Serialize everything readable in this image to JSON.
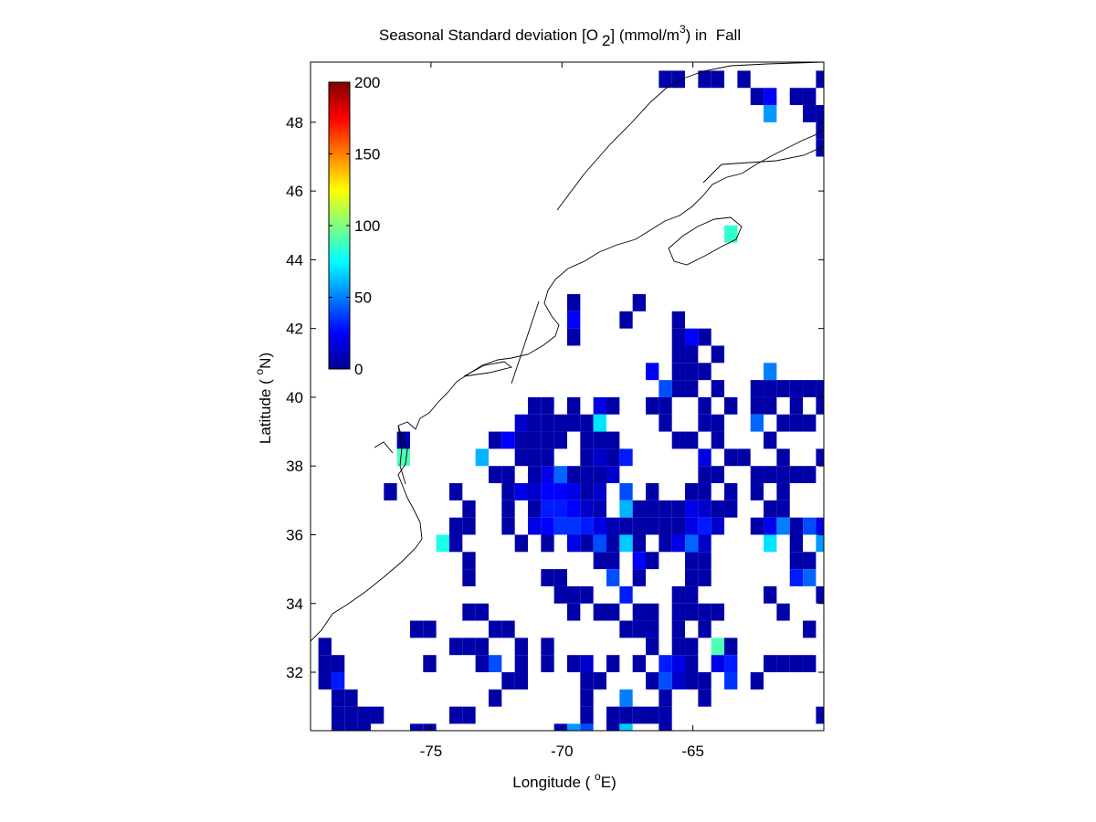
{
  "chart_data": {
    "type": "heatmap",
    "title_parts": [
      "Seasonal Standard deviation [O",
      "2",
      "] (mmol/m",
      "3",
      ") in  Fall"
    ],
    "xlabel_parts": [
      "Longitude ( ",
      "o",
      "E)"
    ],
    "ylabel_parts": [
      "Latitude ( ",
      "o",
      "N)"
    ],
    "xlim": [
      -79.6,
      -60
    ],
    "ylim": [
      30.3,
      49.75
    ],
    "xticks": [
      -75,
      -70,
      -65
    ],
    "yticks": [
      32,
      34,
      36,
      38,
      40,
      42,
      44,
      46,
      48
    ],
    "colormap": "jet",
    "clim": [
      0,
      200
    ],
    "cticks": [
      0,
      50,
      100,
      150,
      200
    ],
    "x": [
      -66.05,
      -65.55,
      -64.55,
      -64.05,
      -63.05,
      -60.05,
      -62.55,
      -62.05,
      -61.05,
      -60.55,
      -62.05,
      -60.55,
      -60.05,
      -60.05,
      -60.05,
      -63.55,
      -69.55,
      -67.05,
      -69.55,
      -67.55,
      -65.55,
      -69.55,
      -65.55,
      -65.05,
      -64.55,
      -65.55,
      -65.05,
      -64.05,
      -66.55,
      -65.55,
      -65.05,
      -64.55,
      -62.05,
      -66.05,
      -65.55,
      -65.05,
      -64.05,
      -62.55,
      -62.05,
      -61.55,
      -61.05,
      -60.55,
      -60.05,
      -71.05,
      -70.55,
      -69.55,
      -68.55,
      -68.05,
      -66.55,
      -66.05,
      -64.55,
      -63.55,
      -62.55,
      -62.05,
      -61.05,
      -60.05,
      -71.55,
      -71.05,
      -70.55,
      -70.05,
      -69.55,
      -69.05,
      -68.55,
      -66.05,
      -64.55,
      -64.05,
      -62.55,
      -61.55,
      -61.05,
      -60.55,
      -76.05,
      -72.55,
      -72.05,
      -71.55,
      -71.05,
      -70.55,
      -70.05,
      -69.05,
      -68.55,
      -68.05,
      -65.55,
      -65.05,
      -64.05,
      -62.05,
      -76.05,
      -73.05,
      -71.55,
      -71.05,
      -70.55,
      -69.05,
      -68.55,
      -68.05,
      -67.55,
      -64.55,
      -63.55,
      -63.05,
      -61.55,
      -60.05,
      -72.55,
      -72.05,
      -71.05,
      -70.55,
      -70.05,
      -69.55,
      -69.05,
      -68.55,
      -68.05,
      -64.55,
      -64.05,
      -62.55,
      -62.05,
      -61.55,
      -61.05,
      -60.55,
      -76.55,
      -74.05,
      -72.05,
      -71.55,
      -71.05,
      -70.55,
      -70.05,
      -69.55,
      -69.05,
      -68.55,
      -67.55,
      -66.55,
      -65.05,
      -64.55,
      -63.55,
      -62.55,
      -61.55,
      -73.55,
      -72.05,
      -71.05,
      -70.55,
      -70.05,
      -69.55,
      -69.05,
      -68.55,
      -67.55,
      -67.05,
      -66.55,
      -66.05,
      -65.55,
      -65.05,
      -64.55,
      -64.05,
      -63.55,
      -62.05,
      -61.55,
      -74.05,
      -73.55,
      -72.05,
      -71.05,
      -70.55,
      -70.05,
      -69.55,
      -69.05,
      -68.55,
      -68.05,
      -67.55,
      -67.05,
      -66.55,
      -66.05,
      -65.55,
      -65.05,
      -64.55,
      -64.05,
      -62.55,
      -62.05,
      -61.55,
      -61.05,
      -60.55,
      -60.05,
      -74.55,
      -74.05,
      -71.55,
      -70.55,
      -69.55,
      -69.05,
      -68.55,
      -68.05,
      -67.55,
      -67.05,
      -66.05,
      -65.55,
      -65.05,
      -64.55,
      -62.05,
      -61.05,
      -60.05,
      -73.55,
      -68.55,
      -68.05,
      -67.05,
      -66.55,
      -65.05,
      -64.55,
      -61.05,
      -60.55,
      -73.55,
      -70.55,
      -70.05,
      -68.05,
      -67.05,
      -65.05,
      -64.55,
      -61.05,
      -60.55,
      -70.05,
      -69.55,
      -69.05,
      -67.55,
      -65.55,
      -65.05,
      -62.05,
      -60.05,
      -73.55,
      -73.05,
      -69.55,
      -68.55,
      -68.05,
      -67.05,
      -66.55,
      -65.55,
      -65.05,
      -64.55,
      -64.05,
      -61.55,
      -75.55,
      -75.05,
      -72.55,
      -72.05,
      -67.55,
      -67.05,
      -66.55,
      -65.55,
      -64.55,
      -60.55,
      -79.05,
      -74.05,
      -73.55,
      -73.05,
      -71.55,
      -70.55,
      -66.55,
      -65.55,
      -65.05,
      -64.05,
      -63.55,
      -79.05,
      -78.55,
      -75.05,
      -73.05,
      -72.55,
      -71.55,
      -70.55,
      -69.55,
      -69.05,
      -68.05,
      -67.05,
      -66.05,
      -65.55,
      -65.05,
      -64.05,
      -63.55,
      -62.05,
      -61.55,
      -61.05,
      -60.55,
      -79.05,
      -78.55,
      -72.05,
      -71.55,
      -69.05,
      -68.55,
      -66.55,
      -66.05,
      -65.55,
      -65.05,
      -64.55,
      -63.55,
      -62.55,
      -78.55,
      -78.05,
      -72.55,
      -69.05,
      -67.55,
      -66.05,
      -64.55,
      -78.55,
      -78.05,
      -77.55,
      -77.05,
      -74.05,
      -73.55,
      -69.05,
      -68.05,
      -67.55,
      -67.05,
      -66.55,
      -66.05,
      -60.05,
      -78.55,
      -78.05,
      -77.55,
      -75.55,
      -75.05,
      -70.05,
      -69.55,
      -69.05,
      -68.05,
      -67.55,
      -66.05
    ],
    "y": [
      49.25,
      49.25,
      49.25,
      49.25,
      49.25,
      49.25,
      48.75,
      48.75,
      48.75,
      48.75,
      48.25,
      48.25,
      48.25,
      47.75,
      47.25,
      44.75,
      42.75,
      42.75,
      42.25,
      42.25,
      42.25,
      41.75,
      41.75,
      41.75,
      41.75,
      41.25,
      41.25,
      41.25,
      40.75,
      40.75,
      40.75,
      40.75,
      40.75,
      40.25,
      40.25,
      40.25,
      40.25,
      40.25,
      40.25,
      40.25,
      40.25,
      40.25,
      40.25,
      39.75,
      39.75,
      39.75,
      39.75,
      39.75,
      39.75,
      39.75,
      39.75,
      39.75,
      39.75,
      39.75,
      39.75,
      39.75,
      39.25,
      39.25,
      39.25,
      39.25,
      39.25,
      39.25,
      39.25,
      39.25,
      39.25,
      39.25,
      39.25,
      39.25,
      39.25,
      39.25,
      38.75,
      38.75,
      38.75,
      38.75,
      38.75,
      38.75,
      38.75,
      38.75,
      38.75,
      38.75,
      38.75,
      38.75,
      38.75,
      38.75,
      38.25,
      38.25,
      38.25,
      38.25,
      38.25,
      38.25,
      38.25,
      38.25,
      38.25,
      38.25,
      38.25,
      38.25,
      38.25,
      38.25,
      37.75,
      37.75,
      37.75,
      37.75,
      37.75,
      37.75,
      37.75,
      37.75,
      37.75,
      37.75,
      37.75,
      37.75,
      37.75,
      37.75,
      37.75,
      37.75,
      37.25,
      37.25,
      37.25,
      37.25,
      37.25,
      37.25,
      37.25,
      37.25,
      37.25,
      37.25,
      37.25,
      37.25,
      37.25,
      37.25,
      37.25,
      37.25,
      37.25,
      36.75,
      36.75,
      36.75,
      36.75,
      36.75,
      36.75,
      36.75,
      36.75,
      36.75,
      36.75,
      36.75,
      36.75,
      36.75,
      36.75,
      36.75,
      36.75,
      36.75,
      36.75,
      36.75,
      36.25,
      36.25,
      36.25,
      36.25,
      36.25,
      36.25,
      36.25,
      36.25,
      36.25,
      36.25,
      36.25,
      36.25,
      36.25,
      36.25,
      36.25,
      36.25,
      36.25,
      36.25,
      36.25,
      36.25,
      36.25,
      36.25,
      36.25,
      36.25,
      35.75,
      35.75,
      35.75,
      35.75,
      35.75,
      35.75,
      35.75,
      35.75,
      35.75,
      35.75,
      35.75,
      35.75,
      35.75,
      35.75,
      35.75,
      35.75,
      35.75,
      35.25,
      35.25,
      35.25,
      35.25,
      35.25,
      35.25,
      35.25,
      35.25,
      35.25,
      34.75,
      34.75,
      34.75,
      34.75,
      34.75,
      34.75,
      34.75,
      34.75,
      34.75,
      34.25,
      34.25,
      34.25,
      34.25,
      34.25,
      34.25,
      34.25,
      34.25,
      33.75,
      33.75,
      33.75,
      33.75,
      33.75,
      33.75,
      33.75,
      33.75,
      33.75,
      33.75,
      33.75,
      33.75,
      33.25,
      33.25,
      33.25,
      33.25,
      33.25,
      33.25,
      33.25,
      33.25,
      33.25,
      33.25,
      32.75,
      32.75,
      32.75,
      32.75,
      32.75,
      32.75,
      32.75,
      32.75,
      32.75,
      32.75,
      32.75,
      32.25,
      32.25,
      32.25,
      32.25,
      32.25,
      32.25,
      32.25,
      32.25,
      32.25,
      32.25,
      32.25,
      32.25,
      32.25,
      32.25,
      32.25,
      32.25,
      32.25,
      32.25,
      32.25,
      32.25,
      31.75,
      31.75,
      31.75,
      31.75,
      31.75,
      31.75,
      31.75,
      31.75,
      31.75,
      31.75,
      31.75,
      31.75,
      31.75,
      31.25,
      31.25,
      31.25,
      31.25,
      31.25,
      31.25,
      31.25,
      30.75,
      30.75,
      30.75,
      30.75,
      30.75,
      30.75,
      30.75,
      30.75,
      30.75,
      30.75,
      30.75,
      30.75,
      30.75,
      30.25,
      30.25,
      30.25,
      30.25,
      30.25,
      30.25,
      30.25,
      30.25,
      30.25,
      30.25,
      30.25
    ],
    "values": [
      8,
      8,
      8,
      8,
      8,
      8,
      8,
      25,
      8,
      8,
      55,
      8,
      8,
      8,
      8,
      85,
      8,
      8,
      25,
      8,
      8,
      8,
      8,
      25,
      8,
      8,
      8,
      8,
      25,
      8,
      8,
      8,
      50,
      40,
      8,
      8,
      8,
      8,
      8,
      8,
      8,
      8,
      8,
      8,
      8,
      8,
      20,
      8,
      8,
      8,
      8,
      8,
      8,
      8,
      8,
      8,
      15,
      8,
      8,
      8,
      8,
      8,
      70,
      8,
      8,
      8,
      45,
      8,
      8,
      8,
      8,
      8,
      25,
      8,
      8,
      8,
      8,
      8,
      8,
      8,
      8,
      8,
      8,
      8,
      90,
      60,
      8,
      8,
      8,
      8,
      15,
      8,
      30,
      20,
      8,
      8,
      8,
      8,
      8,
      8,
      8,
      20,
      45,
      8,
      8,
      8,
      15,
      8,
      8,
      8,
      8,
      8,
      8,
      8,
      8,
      8,
      8,
      20,
      15,
      25,
      25,
      20,
      8,
      15,
      40,
      8,
      8,
      8,
      8,
      8,
      8,
      8,
      8,
      8,
      30,
      30,
      25,
      15,
      10,
      60,
      8,
      8,
      8,
      8,
      20,
      15,
      8,
      8,
      8,
      8,
      8,
      8,
      8,
      20,
      25,
      35,
      35,
      30,
      20,
      10,
      8,
      8,
      8,
      8,
      8,
      20,
      30,
      15,
      8,
      20,
      50,
      8,
      40,
      20,
      80,
      8,
      8,
      8,
      20,
      8,
      40,
      8,
      65,
      8,
      8,
      20,
      45,
      15,
      70,
      8,
      55,
      8,
      8,
      8,
      25,
      8,
      8,
      8,
      8,
      8,
      8,
      8,
      8,
      40,
      8,
      8,
      8,
      30,
      45,
      8,
      8,
      8,
      30,
      8,
      8,
      8,
      8,
      8,
      8,
      8,
      8,
      8,
      8,
      8,
      8,
      8,
      8,
      8,
      8,
      8,
      8,
      8,
      8,
      8,
      8,
      8,
      8,
      8,
      8,
      8,
      8,
      8,
      8,
      8,
      8,
      8,
      8,
      8,
      90,
      8,
      8,
      8,
      8,
      8,
      40,
      8,
      8,
      8,
      15,
      8,
      8,
      30,
      20,
      8,
      20,
      30,
      8,
      8,
      8,
      8,
      8,
      30,
      8,
      8,
      8,
      8,
      8,
      40,
      15,
      8,
      8,
      35,
      8,
      8,
      8,
      8,
      8,
      50,
      8,
      8,
      8,
      8,
      8,
      8,
      8,
      8,
      8,
      8,
      8,
      8,
      8,
      8,
      8,
      8,
      8,
      8,
      8,
      8,
      8,
      55,
      40,
      8,
      65,
      8
    ]
  }
}
